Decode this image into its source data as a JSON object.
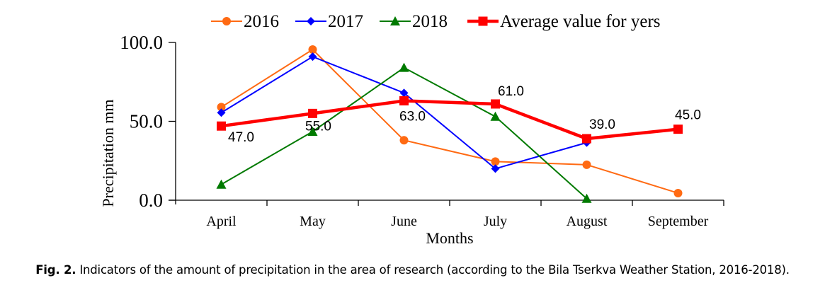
{
  "chart_data": {
    "type": "line",
    "title": "",
    "xlabel": "Months",
    "ylabel": "Precipitation mm",
    "categories": [
      "April",
      "May",
      "June",
      "July",
      "August",
      "September"
    ],
    "ylim": [
      0,
      100
    ],
    "yticks": [
      "0.0",
      "50.0",
      "100.0"
    ],
    "ytick_values": [
      0,
      50,
      100
    ],
    "grid": false,
    "legend_position": "top",
    "series": [
      {
        "name": "2016",
        "color": "#FF6A13",
        "marker": "circle",
        "values": [
          59,
          95.5,
          38,
          24.5,
          22.5,
          4.5
        ]
      },
      {
        "name": "2017",
        "color": "#0000FF",
        "marker": "diamond",
        "values": [
          55.5,
          91,
          68,
          20,
          36.5,
          null
        ]
      },
      {
        "name": "2018",
        "color": "#007A00",
        "marker": "triangle",
        "values": [
          10,
          43.5,
          84,
          53,
          1,
          null
        ]
      },
      {
        "name": "Average value for yers",
        "color": "#FF0000",
        "marker": "square",
        "values": [
          47,
          55,
          63,
          61,
          39,
          45
        ],
        "data_labels": [
          "47.0",
          "55.0",
          "63.0",
          "61.0",
          "39.0",
          "45.0"
        ]
      }
    ]
  },
  "caption": {
    "label": "Fig. 2.",
    "text": " Indicators of the amount of precipitation in the area of research (according to the Bila Tserkva Weather Station, 2016-2018)."
  }
}
